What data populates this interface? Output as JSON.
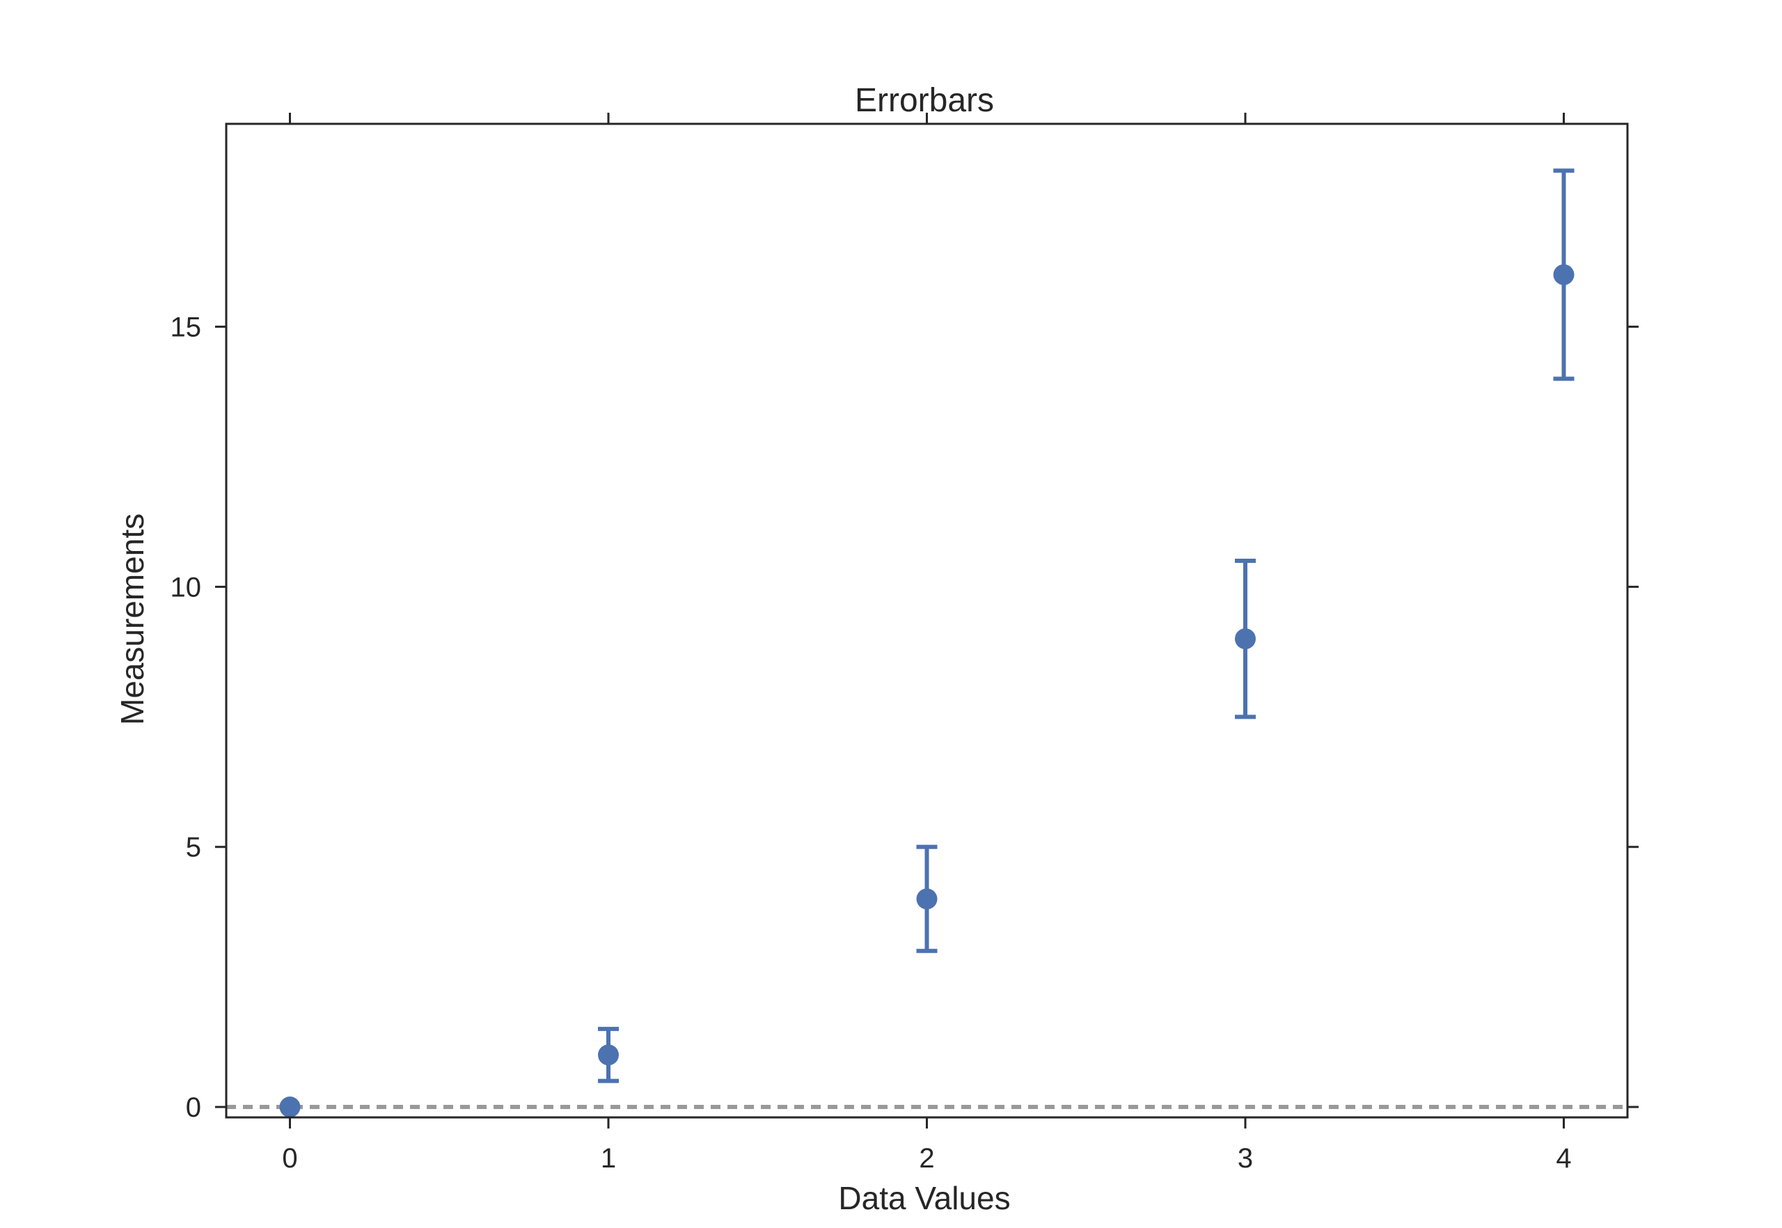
{
  "chart_data": {
    "type": "scatter",
    "title": "Errorbars",
    "xlabel": "Data Values",
    "ylabel": "Measurements",
    "xlim": [
      -0.2,
      4.2
    ],
    "ylim": [
      -0.2,
      18.9
    ],
    "x_ticks": [
      0,
      1,
      2,
      3,
      4
    ],
    "y_ticks": [
      0,
      5,
      10,
      15
    ],
    "grid": false,
    "reference_line": {
      "y": 0,
      "style": "dashed",
      "color": "#999999"
    },
    "series": [
      {
        "color": "#4C72B0",
        "x": [
          0,
          1,
          2,
          3,
          4
        ],
        "y": [
          0,
          1,
          4,
          9,
          16
        ],
        "yerr": [
          0,
          0.5,
          1,
          1.5,
          2
        ]
      }
    ]
  }
}
